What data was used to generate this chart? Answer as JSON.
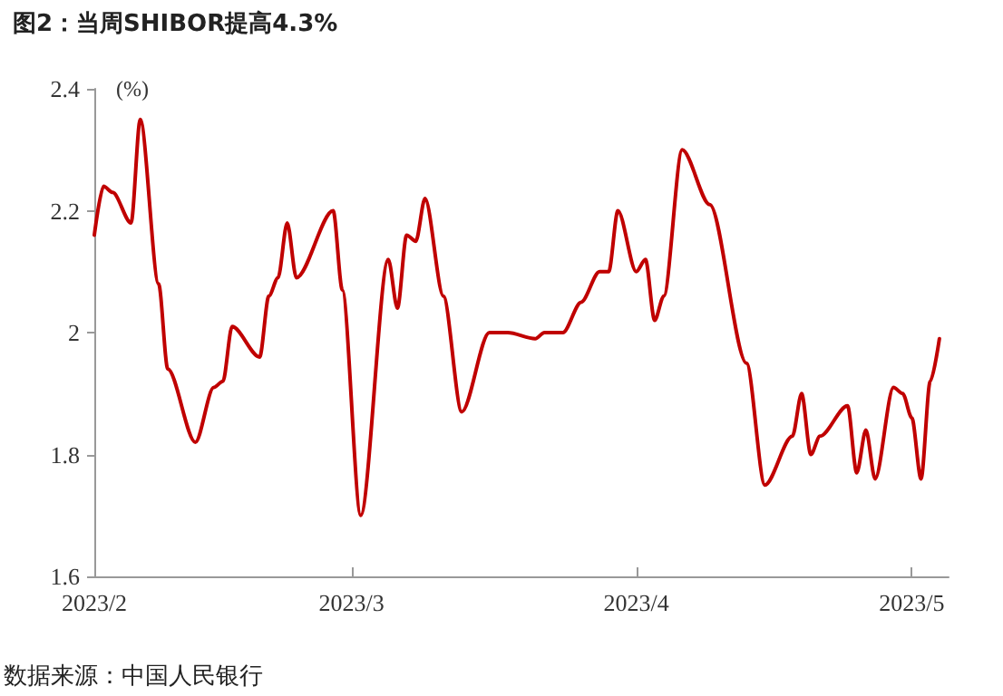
{
  "chart_data": {
    "type": "line",
    "title": "图2：当周SHIBOR提高4.3%",
    "ylabel": "(%)",
    "annotations": [
      "数据来源：中国人民银行"
    ],
    "x": [
      "2023-02-01",
      "2023-02-02",
      "2023-02-03",
      "2023-02-05",
      "2023-02-06",
      "2023-02-08",
      "2023-02-09",
      "2023-02-12",
      "2023-02-14",
      "2023-02-15",
      "2023-02-16",
      "2023-02-19",
      "2023-02-20",
      "2023-02-21",
      "2023-02-22",
      "2023-02-23",
      "2023-02-27",
      "2023-02-28",
      "2023-03-02",
      "2023-03-05",
      "2023-03-06",
      "2023-03-07",
      "2023-03-08",
      "2023-03-09",
      "2023-03-11",
      "2023-03-13",
      "2023-03-16",
      "2023-03-18",
      "2023-03-21",
      "2023-03-22",
      "2023-03-24",
      "2023-03-26",
      "2023-03-28",
      "2023-03-29",
      "2023-03-30",
      "2023-04-01",
      "2023-04-02",
      "2023-04-03",
      "2023-04-04",
      "2023-04-06",
      "2023-04-09",
      "2023-04-13",
      "2023-04-15",
      "2023-04-18",
      "2023-04-19",
      "2023-04-20",
      "2023-04-21",
      "2023-04-24",
      "2023-04-25",
      "2023-04-26",
      "2023-04-27",
      "2023-04-29",
      "2023-04-30",
      "2023-05-01",
      "2023-05-02",
      "2023-05-03",
      "2023-05-04"
    ],
    "series": [
      {
        "color": "#c00000",
        "values": [
          2.16,
          2.24,
          2.23,
          2.18,
          2.35,
          2.08,
          1.94,
          1.82,
          1.91,
          1.92,
          2.01,
          1.96,
          2.06,
          2.09,
          2.18,
          2.09,
          2.2,
          2.07,
          1.7,
          2.12,
          2.04,
          2.16,
          2.15,
          2.22,
          2.06,
          1.87,
          2.0,
          2.0,
          1.99,
          2.0,
          2.0,
          2.05,
          2.1,
          2.1,
          2.2,
          2.1,
          2.12,
          2.02,
          2.06,
          2.3,
          2.21,
          1.95,
          1.75,
          1.83,
          1.9,
          1.8,
          1.83,
          1.88,
          1.77,
          1.84,
          1.76,
          1.91,
          1.9,
          1.86,
          1.76,
          1.92,
          1.99
        ]
      }
    ],
    "xlim": [
      "2023-02-01",
      "2023-05-05"
    ],
    "xticks": [
      {
        "value": "2023-02-01",
        "label": "2023/2"
      },
      {
        "value": "2023-03-01",
        "label": "2023/3"
      },
      {
        "value": "2023-04-01",
        "label": "2023/4"
      },
      {
        "value": "2023-05-01",
        "label": "2023/5"
      }
    ],
    "ylim": [
      1.6,
      2.4
    ],
    "yticks": [
      1.6,
      1.8,
      2,
      2.2,
      2.4
    ],
    "grid": false,
    "marker": "none",
    "line_style": "solid"
  }
}
